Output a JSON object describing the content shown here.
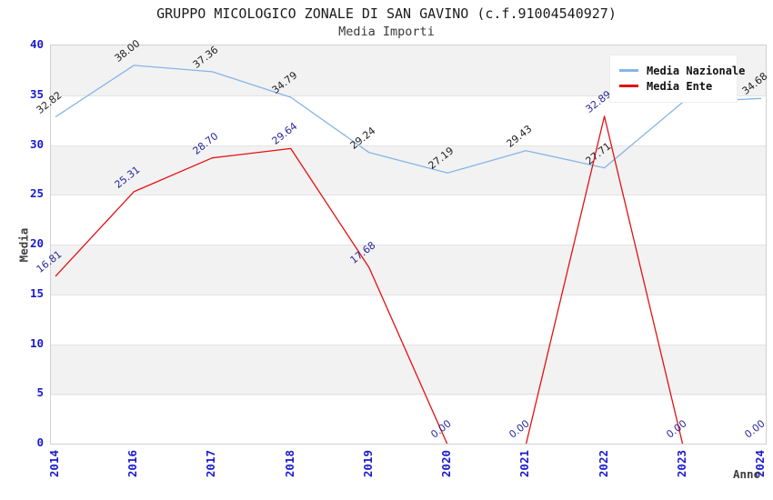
{
  "chart": {
    "title": "GRUPPO MICOLOGICO ZONALE DI SAN GAVINO (c.f.91004540927)",
    "subtitle": "Media Importi"
  },
  "chart_data": {
    "type": "line",
    "title": "GRUPPO MICOLOGICO ZONALE DI SAN GAVINO (c.f.91004540927)",
    "subtitle": "Media Importi",
    "xlabel": "Anno",
    "ylabel": "Media",
    "categories": [
      "2014",
      "2016",
      "2017",
      "2018",
      "2019",
      "2020",
      "2021",
      "2022",
      "2023",
      "2024"
    ],
    "ylim": [
      0,
      40
    ],
    "yticks": [
      0,
      5,
      10,
      15,
      20,
      25,
      30,
      35,
      40
    ],
    "grid": "horizontal-bands-every-5",
    "legend_position": "top-right",
    "series": [
      {
        "name": "Media Nazionale",
        "color": "#85b5e6",
        "label_color": "#1f1f1f",
        "values": [
          32.82,
          38.0,
          37.36,
          34.79,
          29.24,
          27.19,
          29.43,
          27.71,
          34.3,
          34.68
        ],
        "labels": [
          "32.82",
          "38.00",
          "37.36",
          "34.79",
          "29.24",
          "27.19",
          "29.43",
          "27.71",
          "34.30",
          "34.68"
        ]
      },
      {
        "name": "Media Ente",
        "color": "#e41111",
        "label_color": "#28289b",
        "values": [
          16.81,
          25.31,
          28.7,
          29.64,
          17.68,
          0,
          0,
          32.89,
          0,
          0
        ],
        "labels": [
          "16.81",
          "25.31",
          "28.70",
          "29.64",
          "17.68",
          "0.00",
          "0.00",
          "32.89",
          "0.00",
          "0.00"
        ]
      }
    ],
    "colors": {
      "tick_text": "#1a1acc",
      "band_gray": "#f2f2f2",
      "band_white": "#ffffff",
      "plot_border": "#d0d0d0",
      "gridline": "#e4e4e4"
    }
  }
}
